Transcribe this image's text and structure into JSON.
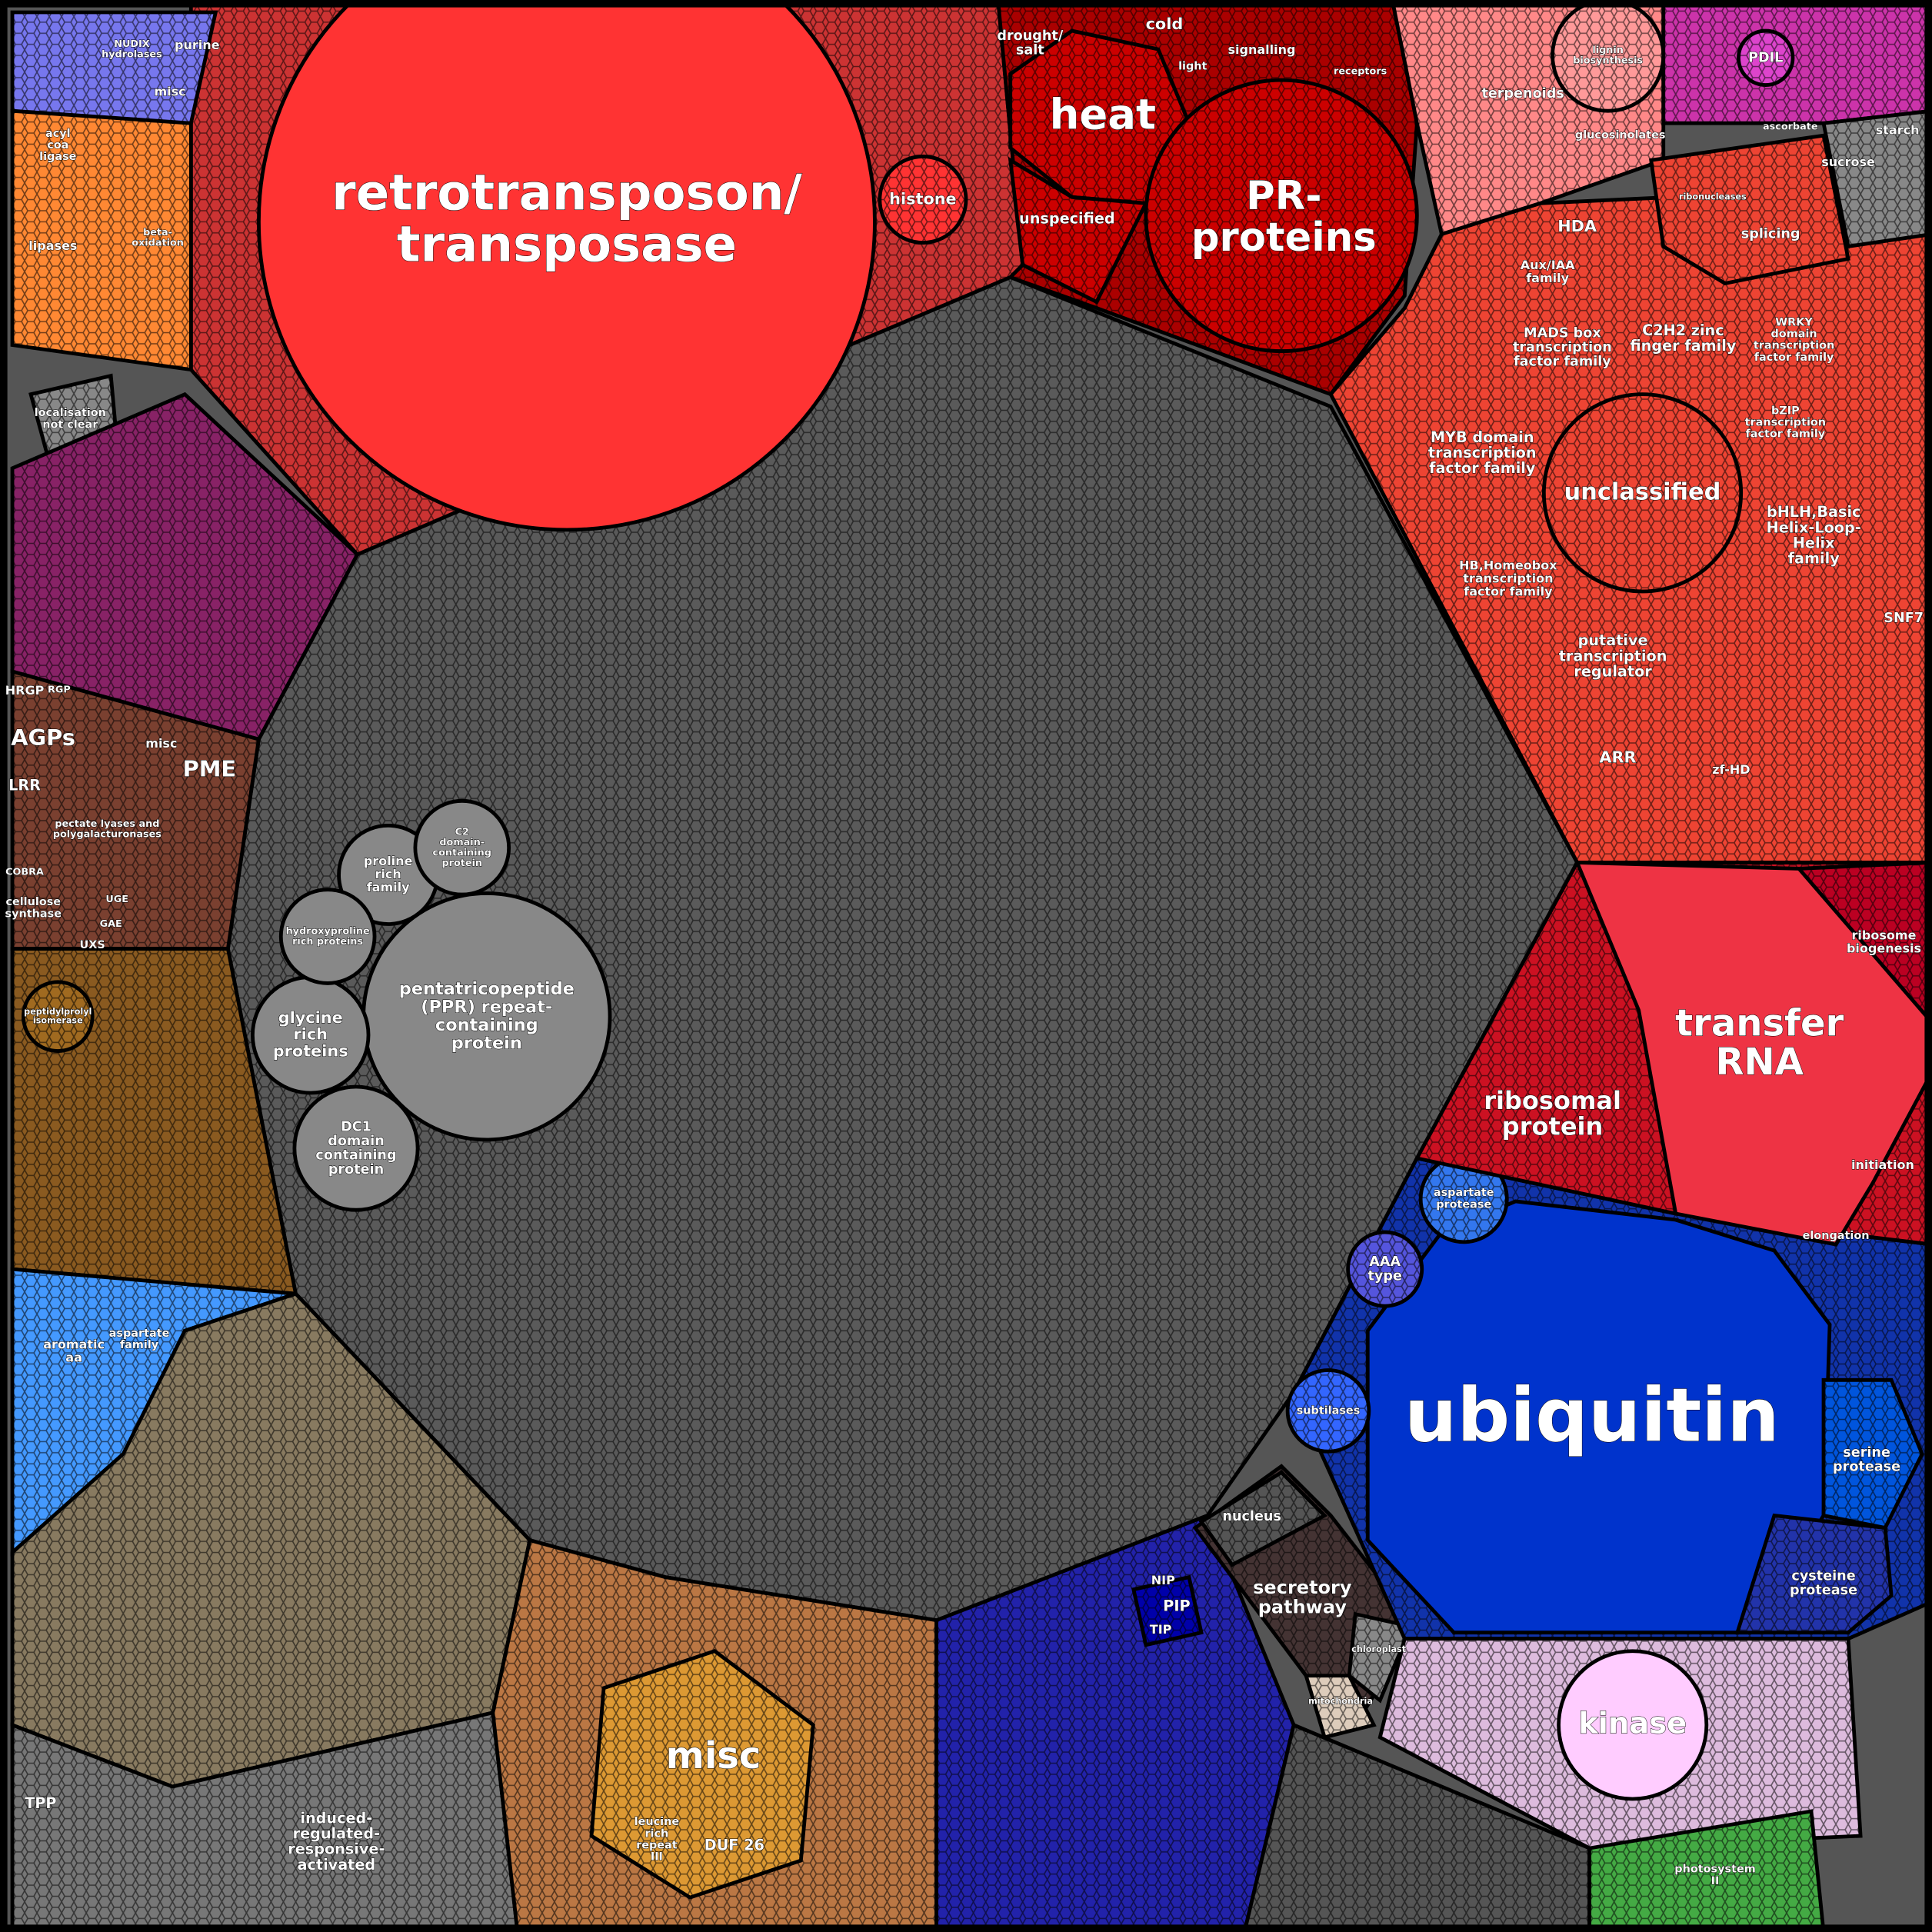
{
  "labels": [
    {
      "lines": [
        "retrotransposon/",
        "transposase"
      ]
    },
    {
      "lines": [
        "histone"
      ]
    },
    {
      "lines": [
        "heat"
      ]
    },
    {
      "lines": [
        "PR-",
        "proteins"
      ]
    },
    {
      "lines": [
        "unspecified"
      ]
    },
    {
      "lines": [
        "drought/",
        "salt"
      ]
    },
    {
      "lines": [
        "cold"
      ]
    },
    {
      "lines": [
        "light"
      ]
    },
    {
      "lines": [
        "signalling"
      ]
    },
    {
      "lines": [
        "receptors"
      ]
    },
    {
      "lines": [
        "NUDIX",
        "hydrolases"
      ]
    },
    {
      "lines": [
        "purine"
      ]
    },
    {
      "lines": [
        "misc"
      ]
    },
    {
      "lines": [
        "acyl",
        "coa",
        "ligase"
      ]
    },
    {
      "lines": [
        "lipases"
      ]
    },
    {
      "lines": [
        "beta-",
        "oxidation"
      ]
    },
    {
      "lines": [
        "localisation",
        "not clear"
      ]
    },
    {
      "lines": [
        "AGPs"
      ]
    },
    {
      "lines": [
        "PME"
      ]
    },
    {
      "lines": [
        "LRR"
      ]
    },
    {
      "lines": [
        "HRGP"
      ]
    },
    {
      "lines": [
        "RGP"
      ]
    },
    {
      "lines": [
        "misc"
      ]
    },
    {
      "lines": [
        "pectate lyases and",
        "polygalacturonases"
      ]
    },
    {
      "lines": [
        "COBRA"
      ]
    },
    {
      "lines": [
        "cellulose",
        "synthase"
      ]
    },
    {
      "lines": [
        "UXS"
      ]
    },
    {
      "lines": [
        "GAE"
      ]
    },
    {
      "lines": [
        "UGE"
      ]
    },
    {
      "lines": [
        "peptidylprolyl",
        "isomerase"
      ]
    },
    {
      "lines": [
        "aromatic",
        "aa"
      ]
    },
    {
      "lines": [
        "aspartate",
        "family"
      ]
    },
    {
      "lines": [
        "induced-",
        "regulated-",
        "responsive-",
        "activated"
      ]
    },
    {
      "lines": [
        "TPP"
      ]
    },
    {
      "lines": [
        "misc"
      ]
    },
    {
      "lines": [
        "DUF 26"
      ]
    },
    {
      "lines": [
        "leucine",
        "rich",
        "repeat",
        "III"
      ]
    },
    {
      "lines": [
        "NIP"
      ]
    },
    {
      "lines": [
        "PIP"
      ]
    },
    {
      "lines": [
        "TIP"
      ]
    },
    {
      "lines": [
        "nucleus"
      ]
    },
    {
      "lines": [
        "secretory",
        "pathway"
      ]
    },
    {
      "lines": [
        "chloroplast"
      ]
    },
    {
      "lines": [
        "mitochondria"
      ]
    },
    {
      "lines": [
        "ubiquitin"
      ]
    },
    {
      "lines": [
        "serine",
        "protease"
      ]
    },
    {
      "lines": [
        "cysteine",
        "protease"
      ]
    },
    {
      "lines": [
        "subtilases"
      ]
    },
    {
      "lines": [
        "AAA",
        "type"
      ]
    },
    {
      "lines": [
        "aspartate",
        "protease"
      ]
    },
    {
      "lines": [
        "kinase"
      ]
    },
    {
      "lines": [
        "photosystem",
        "II"
      ]
    },
    {
      "lines": [
        "transfer",
        "RNA"
      ]
    },
    {
      "lines": [
        "ribosomal",
        "protein"
      ]
    },
    {
      "lines": [
        "ribosome",
        "biogenesis"
      ]
    },
    {
      "lines": [
        "initiation"
      ]
    },
    {
      "lines": [
        "elongation"
      ]
    },
    {
      "lines": [
        "unclassified"
      ]
    },
    {
      "lines": [
        "MYB domain",
        "transcription",
        "factor family"
      ]
    },
    {
      "lines": [
        "C2H2 zinc",
        "finger family"
      ]
    },
    {
      "lines": [
        "MADS box",
        "transcription",
        "factor family"
      ]
    },
    {
      "lines": [
        "WRKY",
        "domain",
        "transcription",
        "factor family"
      ]
    },
    {
      "lines": [
        "bZIP",
        "transcription",
        "factor family"
      ]
    },
    {
      "lines": [
        "bHLH,Basic",
        "Helix-Loop-",
        "Helix",
        "family"
      ]
    },
    {
      "lines": [
        "putative",
        "transcription",
        "regulator"
      ]
    },
    {
      "lines": [
        "HB,Homeobox",
        "transcription",
        "factor family"
      ]
    },
    {
      "lines": [
        "ARR"
      ]
    },
    {
      "lines": [
        "zf-HD"
      ]
    },
    {
      "lines": [
        "HDA"
      ]
    },
    {
      "lines": [
        "Aux/IAA",
        "family"
      ]
    },
    {
      "lines": [
        "SNF7"
      ]
    },
    {
      "lines": [
        "terpenoids"
      ]
    },
    {
      "lines": [
        "lignin",
        "biosynthesis"
      ]
    },
    {
      "lines": [
        "glucosinolates"
      ]
    },
    {
      "lines": [
        "splicing"
      ]
    },
    {
      "lines": [
        "ribonucleases"
      ]
    },
    {
      "lines": [
        "PDIL"
      ]
    },
    {
      "lines": [
        "ascorbate"
      ]
    },
    {
      "lines": [
        "starch"
      ]
    },
    {
      "lines": [
        "sucrose"
      ]
    },
    {
      "lines": [
        "pentatricopeptide",
        "(PPR) repeat-",
        "containing",
        "protein"
      ]
    },
    {
      "lines": [
        "glycine",
        "rich",
        "proteins"
      ]
    },
    {
      "lines": [
        "DC1",
        "domain",
        "containing",
        "protein"
      ]
    },
    {
      "lines": [
        "proline",
        "rich",
        "family"
      ]
    },
    {
      "lines": [
        "hydroxyproline",
        "rich proteins"
      ]
    },
    {
      "lines": [
        "C2",
        "domain-",
        "containing",
        "protein"
      ]
    }
  ]
}
